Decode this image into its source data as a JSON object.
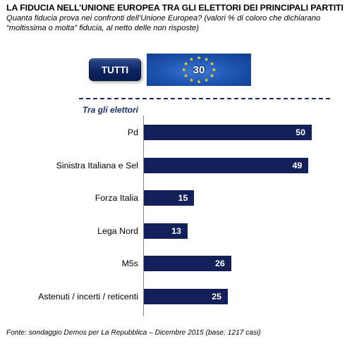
{
  "title": "LA FIDUCIA NELL’UNIONE EUROPEA TRA GLI ELETTORI DEI PRINCIPALI PARTITI",
  "subtitle": "Quanta fiducia prova nei confronti dell’Unione Europea? (valori % di coloro che dichiarano “moltissima o molta”  fiducia, al netto delle non risposte)",
  "total": {
    "label": "TUTTI",
    "value": 30
  },
  "section_label": "Tra gli elettori",
  "source": "Fonte: sondaggio Demos per La Repubblica – Dicembre 2015 (base: 1217 casi)",
  "colors": {
    "bar": "#14205a",
    "flag": "#1f56b4",
    "stars": "#f2d21b"
  },
  "chart_data": {
    "type": "bar",
    "orientation": "horizontal",
    "categories": [
      "Pd",
      "Sinistra Italiana e Sel",
      "Forza Italia",
      "Lega Nord",
      "M5s",
      "Astenuti / incerti / reticenti"
    ],
    "values": [
      50,
      49,
      15,
      13,
      26,
      25
    ],
    "xlim": [
      0,
      50
    ],
    "grid": false,
    "legend": "none"
  }
}
